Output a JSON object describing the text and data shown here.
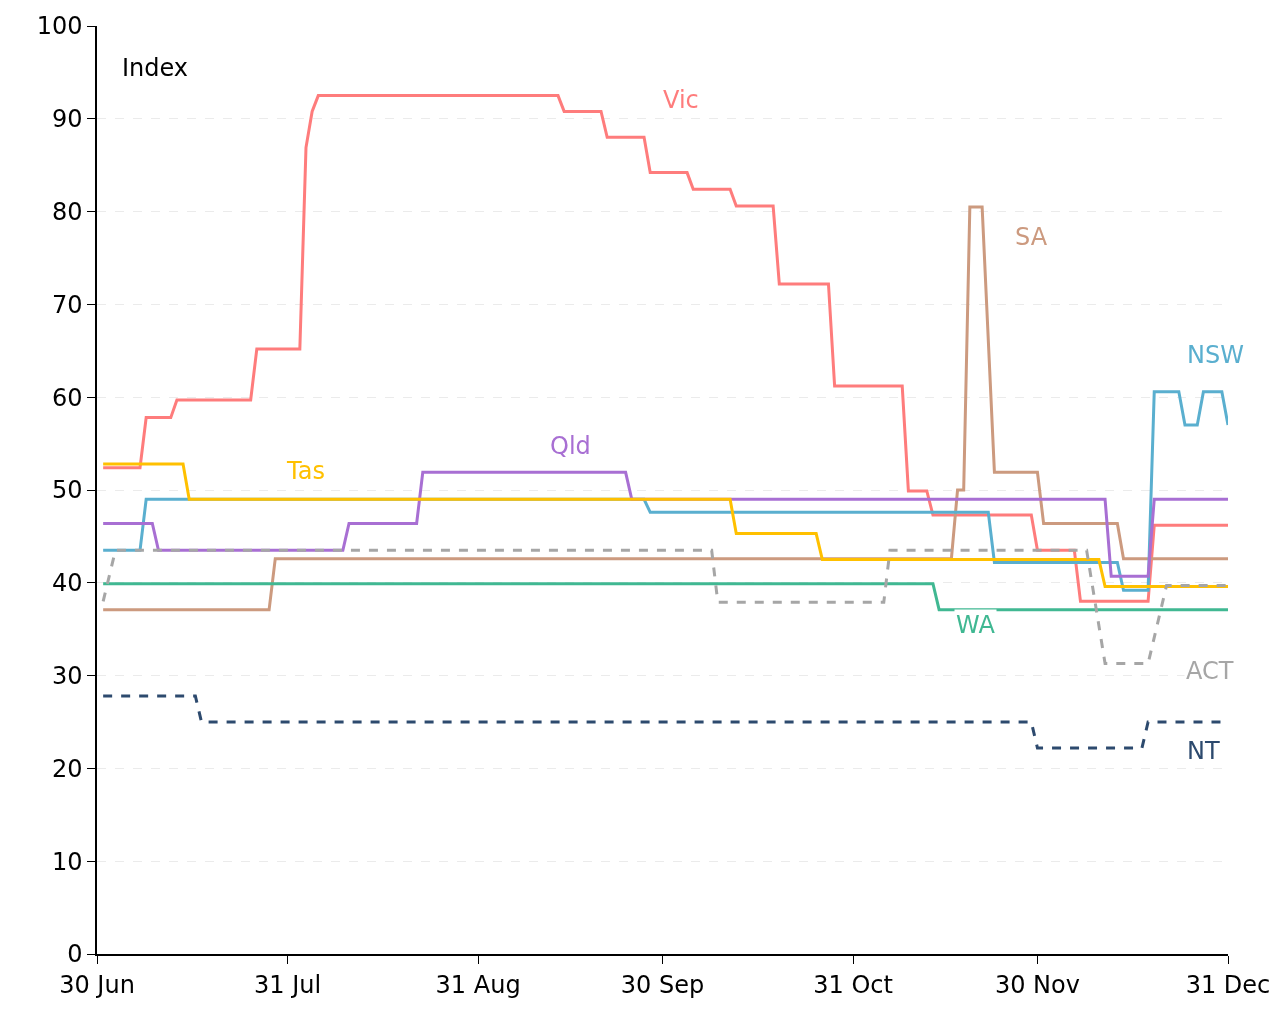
{
  "chart_data": {
    "type": "line",
    "ylabel": "Index",
    "xlim": [
      "--06-30",
      "--12-31"
    ],
    "xticks": [
      {
        "value": "--06-30",
        "label": "30 Jun"
      },
      {
        "value": "--07-31",
        "label": "31 Jul"
      },
      {
        "value": "--08-31",
        "label": "31 Aug"
      },
      {
        "value": "--09-30",
        "label": "30 Sep"
      },
      {
        "value": "--10-31",
        "label": "31 Oct"
      },
      {
        "value": "--11-30",
        "label": "30 Nov"
      },
      {
        "value": "--12-31",
        "label": "31 Dec"
      }
    ],
    "ylim": [
      0,
      100
    ],
    "yticks": [
      0,
      10,
      20,
      30,
      40,
      50,
      60,
      70,
      80,
      90,
      100
    ],
    "grid": "y",
    "legend": false,
    "marker": "none",
    "series": [
      {
        "name": "Vic",
        "color": "#fe7c7c",
        "line_style": "solid",
        "x": [
          "--07-01",
          "--07-07",
          "--07-08",
          "--07-12",
          "--07-13",
          "--07-25",
          "--07-26",
          "--08-02",
          "--08-03",
          "--08-04",
          "--08-05",
          "--09-13",
          "--09-14",
          "--09-20",
          "--09-21",
          "--09-27",
          "--09-28",
          "--10-04",
          "--10-05",
          "--10-11",
          "--10-12",
          "--10-18",
          "--10-19",
          "--10-27",
          "--10-28",
          "--11-08",
          "--11-09",
          "--11-12",
          "--11-13",
          "--11-29",
          "--11-30",
          "--12-06",
          "--12-07",
          "--12-18",
          "--12-19",
          "--12-31"
        ],
        "values": [
          52.4,
          52.4,
          57.8,
          57.8,
          59.7,
          59.7,
          65.2,
          65.2,
          86.9,
          90.8,
          92.5,
          92.5,
          90.8,
          90.8,
          88.0,
          88.0,
          84.2,
          84.2,
          82.4,
          82.4,
          80.6,
          80.6,
          72.2,
          72.2,
          61.2,
          61.2,
          49.9,
          49.9,
          47.3,
          47.3,
          43.5,
          43.5,
          38.0,
          38.0,
          46.2,
          46.2
        ]
      },
      {
        "name": "SA",
        "color": "#cc9a7f",
        "line_style": "solid",
        "x": [
          "--07-01",
          "--07-28",
          "--07-29",
          "--11-16",
          "--11-17",
          "--11-18",
          "--11-19",
          "--11-21",
          "--11-23",
          "--11-30",
          "--12-01",
          "--12-13",
          "--12-14",
          "--12-31"
        ],
        "values": [
          37.1,
          37.1,
          42.6,
          42.6,
          50.0,
          50.0,
          80.5,
          80.5,
          51.9,
          51.9,
          46.4,
          46.4,
          42.6,
          42.6
        ]
      },
      {
        "name": "NSW",
        "color": "#5aafcf",
        "line_style": "solid",
        "x": [
          "--07-01",
          "--07-07",
          "--07-08",
          "--09-27",
          "--09-28",
          "--11-22",
          "--11-23",
          "--12-13",
          "--12-14",
          "--12-18",
          "--12-19",
          "--12-23",
          "--12-24",
          "--12-26",
          "--12-27",
          "--12-30",
          "--12-31"
        ],
        "values": [
          43.5,
          43.5,
          49.0,
          49.0,
          47.6,
          47.6,
          42.2,
          42.2,
          39.2,
          39.2,
          60.6,
          60.6,
          57.0,
          57.0,
          60.6,
          60.6,
          57.0
        ]
      },
      {
        "name": "Qld",
        "color": "#a86fd3",
        "line_style": "solid",
        "x": [
          "--07-01",
          "--07-09",
          "--07-10",
          "--08-09",
          "--08-10",
          "--08-21",
          "--08-22",
          "--09-24",
          "--09-25",
          "--12-11",
          "--12-12",
          "--12-18",
          "--12-19",
          "--12-31"
        ],
        "values": [
          46.4,
          46.4,
          43.5,
          43.5,
          46.4,
          46.4,
          51.9,
          51.9,
          49.0,
          49.0,
          40.7,
          40.7,
          49.0,
          49.0
        ]
      },
      {
        "name": "Tas",
        "color": "#ffc000",
        "line_style": "solid",
        "x": [
          "--07-01",
          "--07-14",
          "--07-15",
          "--10-11",
          "--10-12",
          "--10-25",
          "--10-26",
          "--12-10",
          "--12-11",
          "--12-31"
        ],
        "values": [
          52.8,
          52.8,
          49.0,
          49.0,
          45.3,
          45.3,
          42.5,
          42.5,
          39.6,
          39.6
        ]
      },
      {
        "name": "WA",
        "color": "#40b892",
        "line_style": "solid",
        "x": [
          "--07-01",
          "--11-13",
          "--11-14",
          "--12-31"
        ],
        "values": [
          39.9,
          39.9,
          37.1,
          37.1
        ]
      },
      {
        "name": "ACT",
        "color": "#a6a6a6",
        "line_style": "dashed",
        "x": [
          "--07-01",
          "--07-03",
          "--10-08",
          "--10-09",
          "--11-05",
          "--11-06",
          "--12-08",
          "--12-11",
          "--12-18",
          "--12-21",
          "--12-31"
        ],
        "values": [
          38.0,
          43.5,
          43.5,
          37.9,
          37.9,
          43.5,
          43.5,
          31.3,
          31.3,
          39.7,
          39.7
        ]
      },
      {
        "name": "NT",
        "color": "#2d4a6e",
        "line_style": "dashed",
        "x": [
          "--07-01",
          "--07-16",
          "--07-17",
          "--11-29",
          "--11-30",
          "--12-17",
          "--12-18",
          "--12-31"
        ],
        "values": [
          27.8,
          27.8,
          25.0,
          25.0,
          22.2,
          22.2,
          25.0,
          25.0
        ]
      }
    ]
  }
}
